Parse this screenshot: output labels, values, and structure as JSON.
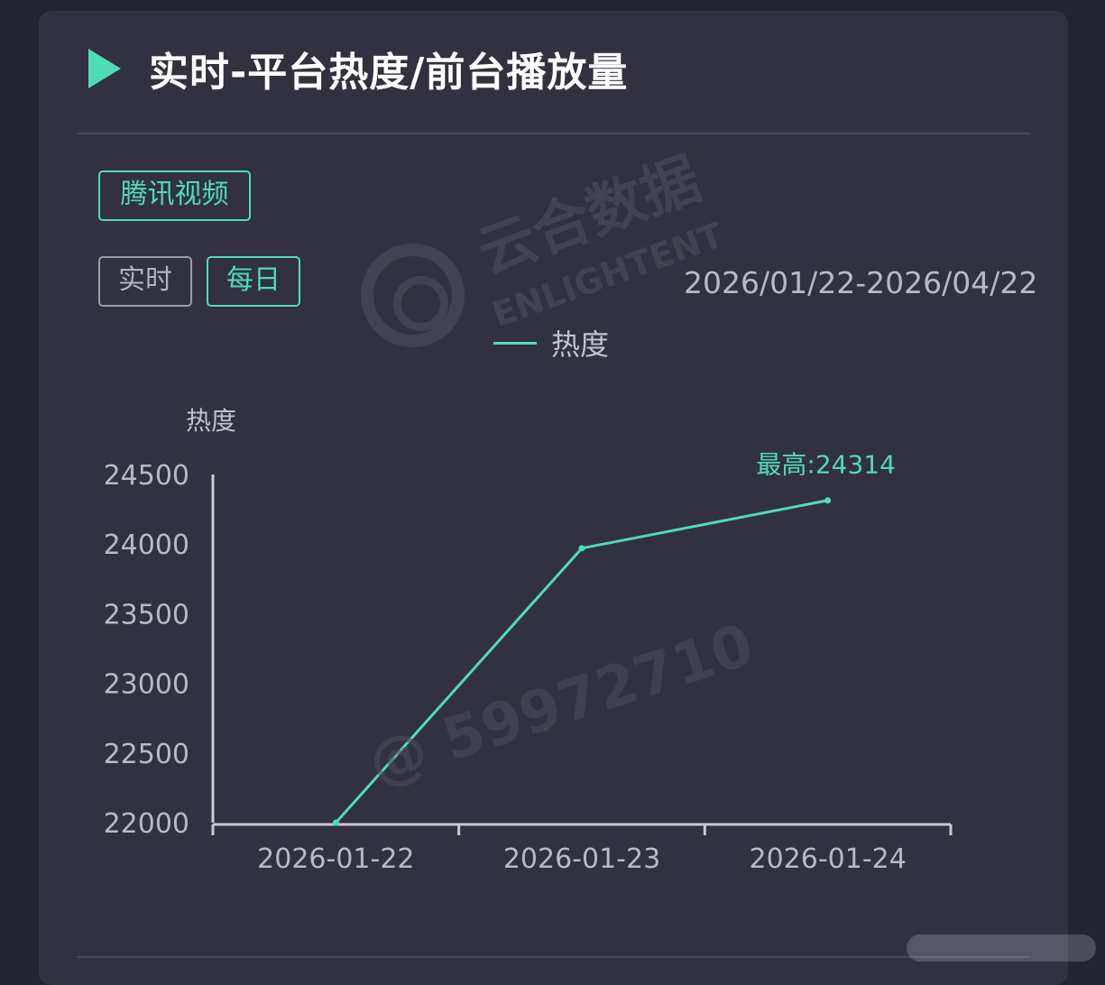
{
  "header": {
    "title": "实时-平台热度/前台播放量"
  },
  "platform_chip": {
    "label": "腾讯视频"
  },
  "mode_tabs": [
    {
      "label": "实时",
      "active": false
    },
    {
      "label": "每日",
      "active": true
    }
  ],
  "date_range": "2026/01/22-2026/04/22",
  "colors": {
    "accent": "#4fdcb3",
    "card_bg": "#31313f",
    "page_bg": "#24242f",
    "axis": "#c9c9d1"
  },
  "watermark": {
    "brand": "云合数据",
    "brand_en": "ENLIGHTENT",
    "user": "@ 59972710"
  },
  "chart_data": {
    "type": "line",
    "categories": [
      "2026-01-22",
      "2026-01-23",
      "2026-01-24"
    ],
    "series": [
      {
        "name": "热度",
        "values": [
          22000,
          23970,
          24314
        ]
      }
    ],
    "ylabel": "热度",
    "ylim": [
      22000,
      24500
    ],
    "yticks": [
      22000,
      22500,
      23000,
      23500,
      24000,
      24500
    ],
    "legend": "top-center",
    "grid": false,
    "annotation": {
      "text": "最高:24314",
      "category": "2026-01-24",
      "value": 24314
    }
  }
}
